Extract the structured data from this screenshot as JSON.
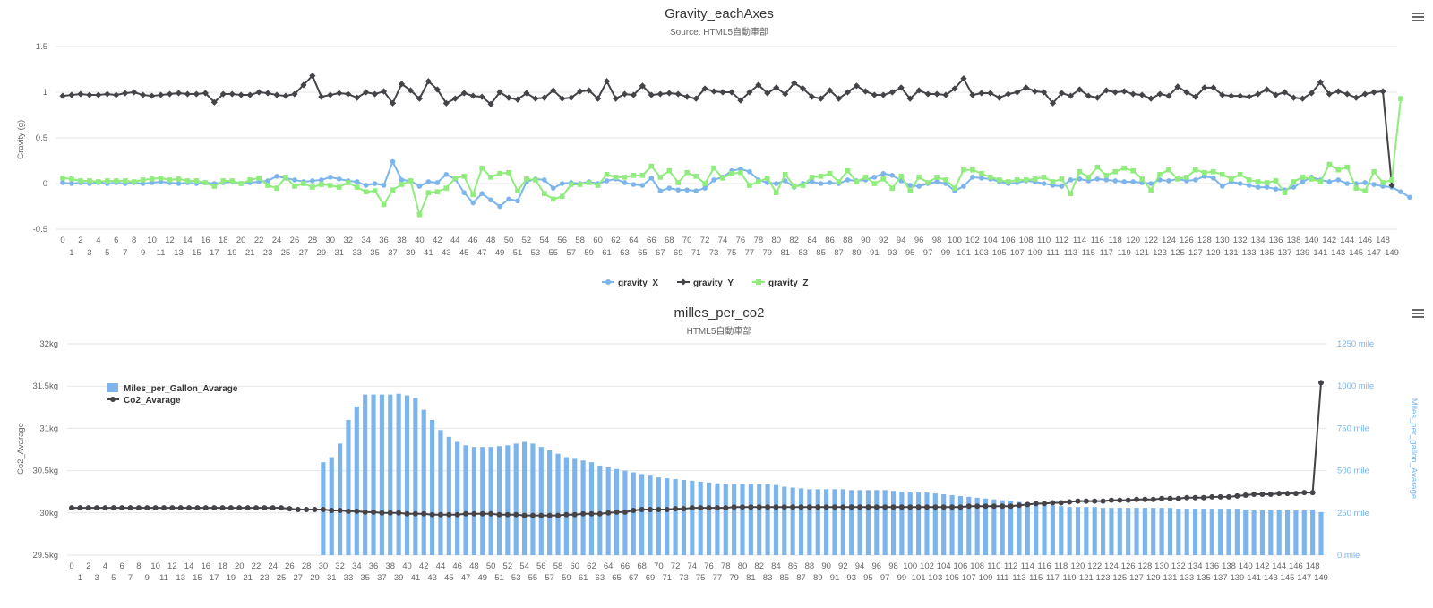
{
  "charts": {
    "top": {
      "title": "Gravity_eachAxes",
      "subtitle": "Source: HTML5自動車部",
      "menu_icon": "hamburger-menu-icon"
    },
    "bottom": {
      "title": "milles_per_co2",
      "subtitle": "HTML5自動車部",
      "menu_icon": "hamburger-menu-icon"
    }
  },
  "chart_data": [
    {
      "type": "line",
      "title": "Gravity_eachAxes",
      "subtitle": "Source: HTML5自動車部",
      "xlabel": "",
      "ylabel": "Gravity (g)",
      "ylim": [
        -0.5,
        1.5
      ],
      "yticks": [
        -0.5,
        0,
        0.5,
        1,
        1.5
      ],
      "x_range": [
        0,
        149
      ],
      "grid": true,
      "legend_position": "bottom-center",
      "series": [
        {
          "name": "gravity_X",
          "color": "#7cb5ec",
          "marker": "circle",
          "values": [
            0.01,
            0.0,
            0.01,
            0.0,
            0.01,
            0.0,
            0.01,
            0.0,
            0.01,
            0.0,
            0.01,
            0.02,
            0.01,
            0.0,
            0.01,
            0.0,
            0.01,
            0.0,
            0.01,
            0.02,
            0.0,
            0.01,
            0.02,
            0.03,
            0.08,
            0.06,
            0.04,
            0.02,
            0.03,
            0.04,
            0.07,
            0.05,
            0.03,
            0.02,
            -0.02,
            0.0,
            -0.02,
            0.24,
            0.04,
            0.03,
            -0.03,
            0.02,
            0.01,
            0.1,
            0.05,
            -0.1,
            -0.21,
            -0.11,
            -0.18,
            -0.25,
            -0.17,
            -0.19,
            0.02,
            0.05,
            0.04,
            -0.05,
            0.0,
            0.01,
            0.0,
            0.02,
            0.0,
            0.03,
            0.05,
            0.01,
            -0.01,
            -0.02,
            0.06,
            -0.08,
            -0.05,
            -0.07,
            -0.07,
            -0.08,
            -0.05,
            0.04,
            0.07,
            0.14,
            0.16,
            0.13,
            0.04,
            0.01,
            0.0,
            0.03,
            -0.04,
            0.0,
            0.02,
            0.0,
            0.01,
            0.0,
            0.04,
            0.03,
            0.04,
            0.07,
            0.11,
            0.09,
            0.03,
            -0.02,
            -0.03,
            0.0,
            0.02,
            0.0,
            -0.08,
            -0.03,
            0.07,
            0.06,
            0.05,
            0.02,
            0.0,
            0.01,
            0.03,
            0.02,
            0.0,
            -0.02,
            -0.03,
            0.04,
            0.05,
            0.03,
            0.05,
            0.04,
            0.03,
            0.02,
            0.02,
            0.01,
            0.0,
            0.04,
            0.03,
            0.05,
            0.03,
            0.04,
            0.08,
            0.06,
            -0.03,
            0.02,
            0.0,
            -0.02,
            -0.04,
            -0.04,
            -0.06,
            -0.07,
            -0.04,
            0.02,
            0.07,
            0.04,
            0.02,
            0.04,
            0.0,
            0.0,
            0.01,
            -0.01,
            -0.03,
            -0.04,
            -0.09,
            -0.15
          ]
        },
        {
          "name": "gravity_Y",
          "color": "#434348",
          "marker": "diamond",
          "values": [
            0.96,
            0.97,
            0.98,
            0.97,
            0.97,
            0.98,
            0.97,
            0.99,
            1.0,
            0.97,
            0.96,
            0.97,
            0.98,
            0.99,
            0.98,
            0.98,
            0.99,
            0.89,
            0.98,
            0.98,
            0.97,
            0.97,
            1.0,
            0.99,
            0.97,
            0.96,
            0.98,
            1.08,
            1.18,
            0.95,
            0.97,
            0.99,
            0.98,
            0.94,
            1.0,
            0.98,
            1.01,
            0.88,
            1.09,
            1.02,
            0.93,
            1.12,
            1.03,
            0.88,
            0.93,
            0.99,
            0.96,
            0.95,
            0.87,
            1.0,
            0.94,
            0.92,
            0.99,
            0.93,
            0.94,
            1.02,
            0.93,
            0.94,
            1.01,
            1.02,
            0.93,
            1.12,
            0.93,
            0.98,
            0.97,
            1.07,
            0.97,
            0.98,
            0.99,
            0.98,
            0.95,
            0.93,
            1.04,
            1.01,
            1.0,
            1.0,
            0.91,
            1.0,
            1.08,
            0.99,
            1.05,
            0.98,
            1.1,
            1.04,
            0.95,
            0.93,
            1.02,
            0.93,
            1.0,
            1.07,
            1.01,
            0.97,
            0.97,
            1.0,
            1.05,
            0.93,
            1.02,
            0.98,
            0.98,
            0.97,
            1.04,
            1.15,
            0.97,
            0.99,
            0.99,
            0.94,
            0.98,
            1.0,
            1.05,
            1.01,
            1.0,
            0.88,
            0.99,
            0.96,
            1.03,
            0.96,
            0.94,
            1.02,
            1.0,
            1.01,
            0.98,
            0.97,
            0.93,
            0.98,
            0.96,
            1.06,
            1.0,
            0.95,
            1.05,
            1.05,
            0.97,
            0.96,
            0.96,
            0.95,
            0.98,
            1.03,
            0.97,
            1.0,
            0.94,
            0.93,
            0.99,
            1.11,
            0.98,
            1.01,
            0.98,
            0.94,
            0.98,
            1.0,
            1.01,
            -0.02
          ]
        },
        {
          "name": "gravity_Z",
          "color": "#90ed7d",
          "marker": "square",
          "values": [
            0.06,
            0.05,
            0.03,
            0.03,
            0.02,
            0.03,
            0.03,
            0.03,
            0.02,
            0.04,
            0.05,
            0.06,
            0.04,
            0.05,
            0.03,
            0.03,
            0.01,
            -0.03,
            0.03,
            0.03,
            0.0,
            0.04,
            0.06,
            -0.02,
            -0.05,
            0.07,
            -0.03,
            0.0,
            -0.04,
            -0.01,
            -0.02,
            -0.04,
            0.01,
            -0.04,
            -0.09,
            -0.08,
            -0.23,
            -0.07,
            -0.01,
            0.03,
            -0.34,
            -0.1,
            -0.09,
            -0.05,
            0.06,
            0.08,
            -0.12,
            0.17,
            0.07,
            0.11,
            0.12,
            -0.08,
            0.05,
            0.04,
            -0.11,
            -0.17,
            -0.14,
            -0.01,
            -0.01,
            0.01,
            -0.02,
            0.1,
            0.07,
            0.07,
            0.09,
            0.09,
            0.19,
            0.07,
            0.14,
            0.01,
            0.12,
            0.08,
            0.0,
            0.17,
            0.06,
            0.11,
            0.12,
            -0.02,
            0.02,
            0.06,
            -0.1,
            0.1,
            -0.03,
            -0.02,
            0.07,
            0.08,
            0.11,
            0.02,
            0.14,
            0.02,
            0.07,
            0.0,
            0.05,
            -0.05,
            0.08,
            -0.08,
            0.07,
            0.01,
            0.07,
            0.04,
            -0.05,
            0.15,
            0.15,
            0.11,
            0.07,
            0.04,
            0.02,
            0.04,
            0.04,
            0.05,
            0.07,
            0.02,
            0.05,
            -0.11,
            0.13,
            0.07,
            0.18,
            0.09,
            0.13,
            0.17,
            0.14,
            0.05,
            -0.07,
            0.1,
            0.15,
            0.05,
            0.07,
            0.15,
            0.12,
            0.13,
            0.1,
            0.05,
            0.1,
            0.04,
            0.02,
            0.01,
            0.03,
            -0.1,
            0.02,
            0.07,
            0.05,
            0.02,
            0.21,
            0.15,
            0.18,
            -0.05,
            -0.08,
            0.13,
            0.01,
            0.04,
            0.93
          ]
        }
      ]
    },
    {
      "type": "bar",
      "title": "milles_per_co2",
      "subtitle": "HTML5自動車部",
      "xlabel": "",
      "ylabel": "Co2_Avarage",
      "y2label": "Miles_per_gallon_Avarage",
      "ylim": [
        29.5,
        32
      ],
      "yticks": [
        "29.5kg",
        "30kg",
        "30.5kg",
        "31kg",
        "31.5kg",
        "32kg"
      ],
      "y2lim": [
        0,
        1250
      ],
      "y2ticks": [
        "0 mile",
        "250 mile",
        "500 mile",
        "750 mile",
        "1000 mile",
        "1250 mile"
      ],
      "x_range": [
        0,
        149
      ],
      "grid": true,
      "legend_position": "top-left",
      "series": [
        {
          "name": "Miles_per_Gallon_Avarage",
          "type": "column",
          "axis": "right",
          "color": "#7cb5ec",
          "values": [
            0,
            0,
            0,
            0,
            0,
            0,
            0,
            0,
            0,
            0,
            0,
            0,
            0,
            0,
            0,
            0,
            0,
            0,
            0,
            0,
            0,
            0,
            0,
            0,
            0,
            0,
            0,
            0,
            0,
            0,
            550,
            580,
            660,
            800,
            880,
            950,
            950,
            950,
            950,
            955,
            945,
            930,
            860,
            800,
            740,
            700,
            670,
            650,
            640,
            640,
            640,
            645,
            650,
            660,
            670,
            660,
            640,
            620,
            600,
            580,
            570,
            560,
            550,
            530,
            520,
            510,
            500,
            490,
            480,
            470,
            460,
            455,
            450,
            445,
            440,
            435,
            430,
            425,
            420,
            420,
            420,
            420,
            420,
            420,
            415,
            405,
            400,
            395,
            390,
            390,
            390,
            390,
            390,
            385,
            385,
            385,
            385,
            385,
            380,
            375,
            370,
            370,
            370,
            365,
            360,
            355,
            350,
            345,
            340,
            335,
            330,
            325,
            320,
            315,
            310,
            305,
            300,
            295,
            290,
            285,
            285,
            285,
            285,
            280,
            280,
            280,
            280,
            280,
            280,
            280,
            280,
            280,
            275,
            275,
            275,
            275,
            275,
            275,
            275,
            275,
            270,
            265,
            265,
            265,
            265,
            265,
            265,
            265,
            270,
            255,
            0
          ]
        },
        {
          "name": "Co2_Avarage",
          "type": "line",
          "axis": "left",
          "color": "#434348",
          "marker": "circle",
          "values": [
            30.06,
            30.06,
            30.06,
            30.06,
            30.06,
            30.06,
            30.06,
            30.06,
            30.06,
            30.06,
            30.06,
            30.06,
            30.06,
            30.06,
            30.06,
            30.06,
            30.06,
            30.06,
            30.06,
            30.06,
            30.06,
            30.06,
            30.06,
            30.06,
            30.06,
            30.06,
            30.05,
            30.04,
            30.04,
            30.04,
            30.04,
            30.03,
            30.03,
            30.02,
            30.02,
            30.01,
            30.01,
            30.0,
            30.0,
            30.0,
            29.99,
            29.99,
            29.99,
            29.98,
            29.98,
            29.98,
            29.98,
            29.99,
            29.99,
            29.99,
            29.99,
            29.98,
            29.98,
            29.98,
            29.97,
            29.97,
            29.97,
            29.97,
            29.97,
            29.98,
            29.98,
            29.99,
            29.99,
            29.99,
            30.0,
            30.01,
            30.01,
            30.03,
            30.04,
            30.04,
            30.04,
            30.04,
            30.05,
            30.05,
            30.06,
            30.06,
            30.06,
            30.06,
            30.06,
            30.07,
            30.07,
            30.07,
            30.07,
            30.07,
            30.07,
            30.07,
            30.07,
            30.07,
            30.07,
            30.07,
            30.07,
            30.07,
            30.07,
            30.07,
            30.07,
            30.07,
            30.07,
            30.07,
            30.07,
            30.07,
            30.07,
            30.07,
            30.07,
            30.07,
            30.07,
            30.07,
            30.07,
            30.08,
            30.08,
            30.08,
            30.08,
            30.08,
            30.08,
            30.09,
            30.1,
            30.11,
            30.11,
            30.12,
            30.12,
            30.13,
            30.14,
            30.14,
            30.14,
            30.14,
            30.15,
            30.15,
            30.15,
            30.16,
            30.16,
            30.16,
            30.17,
            30.17,
            30.17,
            30.18,
            30.18,
            30.18,
            30.19,
            30.19,
            30.19,
            30.2,
            30.21,
            30.22,
            30.22,
            30.22,
            30.23,
            30.23,
            30.23,
            30.24,
            30.24,
            31.54
          ]
        }
      ]
    }
  ]
}
